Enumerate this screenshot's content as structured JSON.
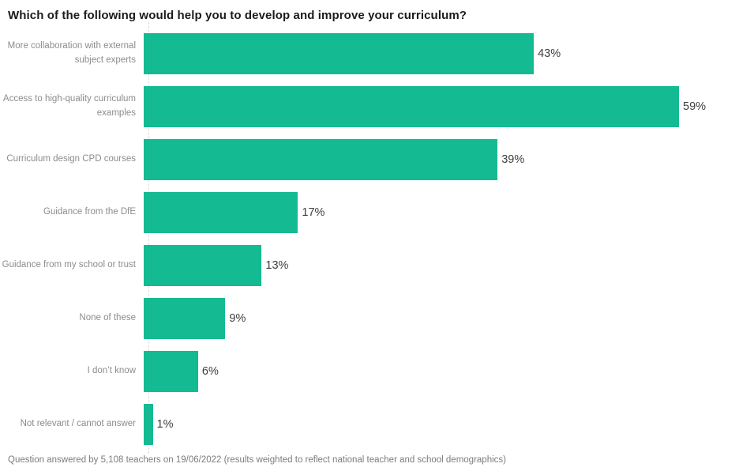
{
  "chart_data": {
    "type": "bar",
    "orientation": "horizontal",
    "title": "Which of the following would help you to develop and improve your curriculum?",
    "categories": [
      "More collaboration with external subject experts",
      "Access to high-quality curriculum examples",
      "Curriculum design CPD courses",
      "Guidance from the DfE",
      "Guidance from my school or trust",
      "None of these",
      "I don’t know",
      "Not relevant / cannot answer"
    ],
    "values": [
      43,
      59,
      39,
      17,
      13,
      9,
      6,
      1
    ],
    "unit": "%",
    "value_labels": [
      "43%",
      "59%",
      "39%",
      "17%",
      "13%",
      "9%",
      "6%",
      "1%"
    ],
    "xlim": [
      0,
      59
    ],
    "grid": "off",
    "legend": "none",
    "data_labels_position": "outside-end",
    "footnote": "Question answered by 5,108 teachers on 19/06/2022 (results weighted to reflect national teacher and school demographics)"
  },
  "colors": {
    "bar": "#14BA92",
    "title_text": "#1b1b1b",
    "label_text": "#8c8c8c",
    "value_text": "#3d3d3d",
    "footnote_text": "#7c7c7c",
    "axis_line": "#d9d9d9",
    "background": "#ffffff"
  }
}
